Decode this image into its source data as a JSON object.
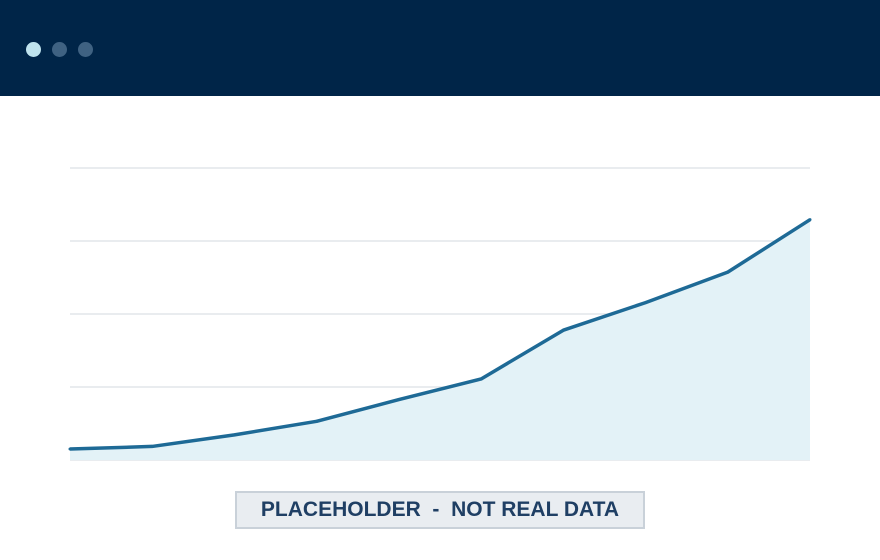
{
  "window": {
    "controls": [
      {
        "name": "window-dot-1",
        "color": "#bfe3ee"
      },
      {
        "name": "window-dot-2",
        "color": "#3f6282"
      },
      {
        "name": "window-dot-3",
        "color": "#3f6282"
      }
    ],
    "titlebar_color": "#002548"
  },
  "badge": {
    "text": "PLACEHOLDER  -  NOT REAL DATA"
  },
  "chart_data": {
    "type": "area",
    "title": "",
    "xlabel": "",
    "ylabel": "",
    "x": [
      0,
      1,
      2,
      3,
      4,
      5,
      6,
      7,
      8,
      9
    ],
    "series": [
      {
        "values": [
          7.5,
          9.3,
          17.2,
          26.5,
          41.4,
          55.5,
          88.9,
          107.8,
          128.7,
          164.6
        ]
      }
    ],
    "xlim": [
      0,
      9
    ],
    "ylim": [
      0,
      200
    ],
    "yticks": [
      0,
      50,
      100,
      150,
      200
    ],
    "grid": true,
    "legend": "none",
    "colors": {
      "line": "#1e6a96",
      "fill": "#e3f2f7",
      "grid": "#e2e6ea"
    }
  }
}
